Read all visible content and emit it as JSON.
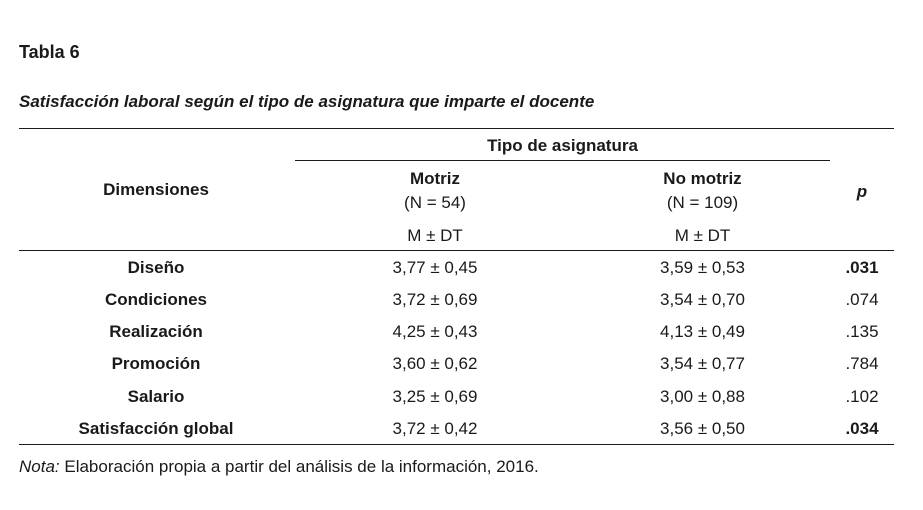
{
  "table_label": "Tabla 6",
  "title": "Satisfacción laboral según el tipo de asignatura que imparte el docente",
  "header": {
    "group": "Tipo de asignatura",
    "dimensions": "Dimensiones",
    "p": "p",
    "motriz": "Motriz",
    "motriz_n": "(N = 54)",
    "no_motriz": "No motriz",
    "no_motriz_n": "(N = 109)",
    "stat_motriz": "M ± DT",
    "stat_no_motriz": "M ± DT"
  },
  "rows": [
    {
      "dimension": "Diseño",
      "motriz": "3,77 ± 0,45",
      "no_motriz": "3,59 ± 0,53",
      "p": ".031",
      "p_bold": true
    },
    {
      "dimension": "Condiciones",
      "motriz": "3,72 ± 0,69",
      "no_motriz": "3,54 ± 0,70",
      "p": ".074",
      "p_bold": false
    },
    {
      "dimension": "Realización",
      "motriz": "4,25 ± 0,43",
      "no_motriz": "4,13 ± 0,49",
      "p": ".135",
      "p_bold": false
    },
    {
      "dimension": "Promoción",
      "motriz": "3,60 ± 0,62",
      "no_motriz": "3,54 ± 0,77",
      "p": ".784",
      "p_bold": false
    },
    {
      "dimension": "Salario",
      "motriz": "3,25 ± 0,69",
      "no_motriz": "3,00 ± 0,88",
      "p": ".102",
      "p_bold": false
    },
    {
      "dimension": "Satisfacción global",
      "motriz": "3,72 ± 0,42",
      "no_motriz": "3,56 ± 0,50",
      "p": ".034",
      "p_bold": true
    }
  ],
  "note": {
    "label": "Nota:",
    "text": " Elaboración propia  a partir del análisis de la información, 2016."
  }
}
